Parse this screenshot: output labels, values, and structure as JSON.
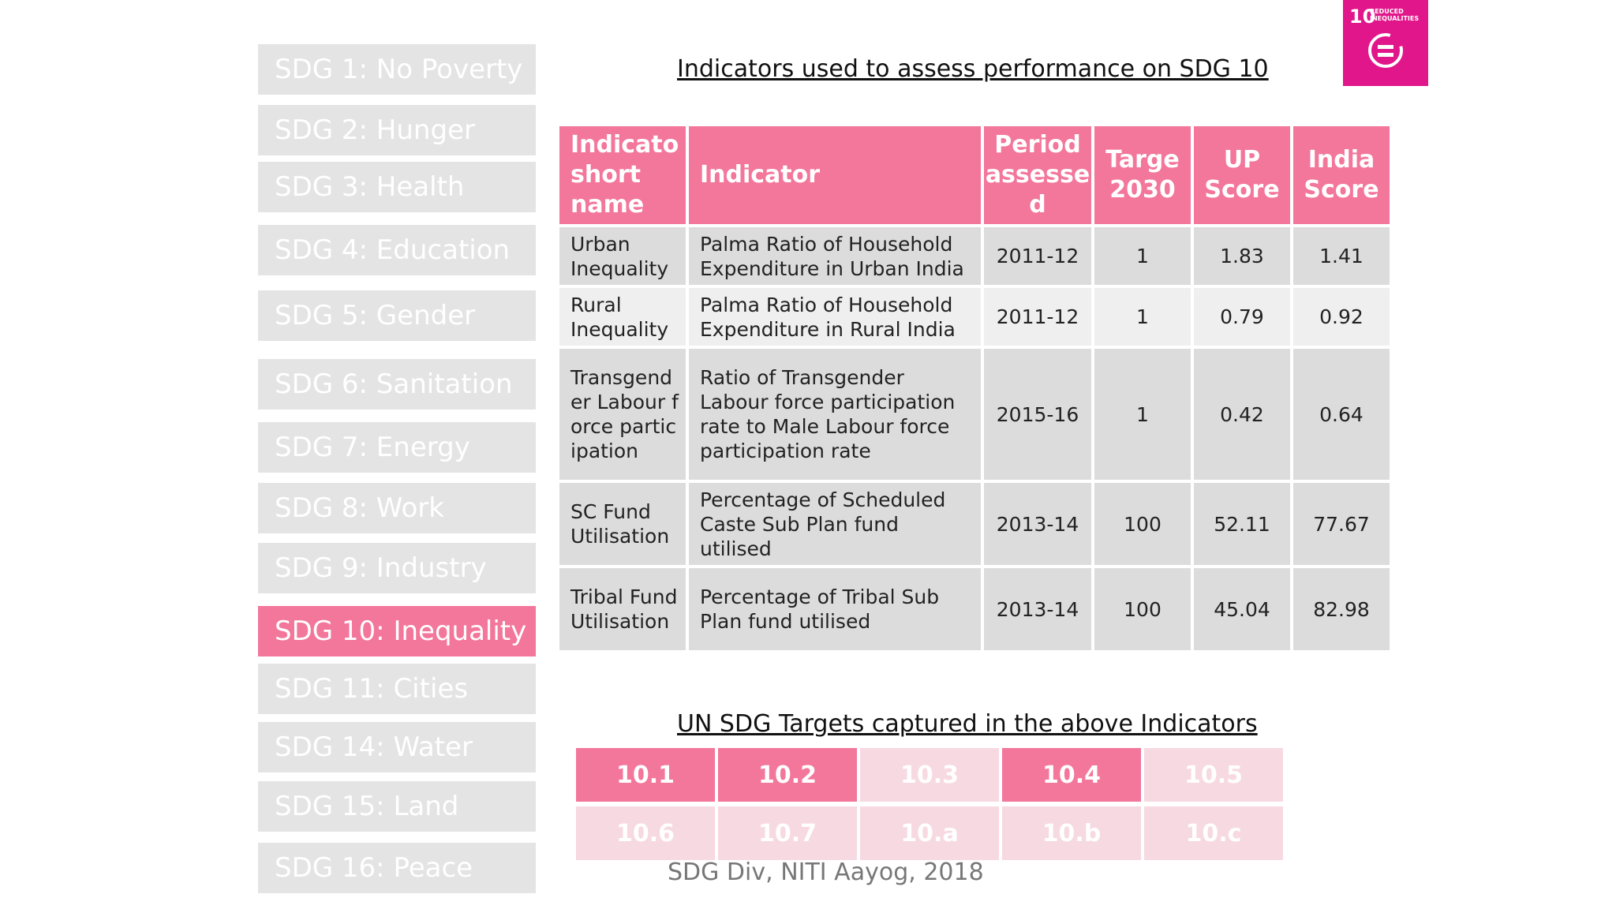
{
  "sidebar": {
    "items": [
      {
        "label": "SDG 1: No Poverty"
      },
      {
        "label": "SDG 2: Hunger"
      },
      {
        "label": "SDG 3: Health"
      },
      {
        "label": "SDG 4: Education"
      },
      {
        "label": "SDG 5: Gender"
      },
      {
        "label": "SDG 6: Sanitation"
      },
      {
        "label": "SDG 7: Energy"
      },
      {
        "label": "SDG 8: Work"
      },
      {
        "label": "SDG 9: Industry"
      },
      {
        "label": "SDG 10: Inequality",
        "active": true
      },
      {
        "label": "SDG 11: Cities"
      },
      {
        "label": "SDG 14: Water"
      },
      {
        "label": "SDG 15: Land"
      },
      {
        "label": "SDG 16: Peace"
      }
    ]
  },
  "logo": {
    "number": "10",
    "text": "REDUCED INEQUALITIES",
    "icon": "reduced-inequalities-icon",
    "color": "#e1168a"
  },
  "title": "Indicators used to assess performance on SDG 10",
  "table": {
    "headers": [
      "Indicato short name",
      "Indicator",
      "Period assesse d",
      "Targe 2030",
      "UP Score",
      "India Score"
    ],
    "rows": [
      {
        "short": "Urban Inequality",
        "indicator": "Palma Ratio of Household Expenditure in Urban India",
        "period": "2011-12",
        "target": "1",
        "up": "1.83",
        "india": "1.41"
      },
      {
        "short": "Rural Inequality",
        "indicator": "Palma Ratio of Household Expenditure in Rural India",
        "period": "2011-12",
        "target": "1",
        "up": "0.79",
        "india": "0.92"
      },
      {
        "short": "Transgender Labour force participation",
        "indicator": "Ratio of Transgender Labour force participation rate to Male Labour force participation rate",
        "period": "2015-16",
        "target": "1",
        "up": "0.42",
        "india": "0.64"
      },
      {
        "short": "SC Fund Utilisation",
        "indicator": "Percentage of Scheduled Caste Sub Plan fund utilised",
        "period": "2013-14",
        "target": "100",
        "up": "52.11",
        "india": "77.67"
      },
      {
        "short": "Tribal Fund Utilisation",
        "indicator": "Percentage of Tribal Sub Plan fund utilised",
        "period": "2013-14",
        "target": "100",
        "up": "45.04",
        "india": "82.98"
      }
    ]
  },
  "targets_title": "UN SDG Targets captured in the above Indicators",
  "targets": [
    {
      "label": "10.1",
      "captured": true
    },
    {
      "label": "10.2",
      "captured": true
    },
    {
      "label": "10.3",
      "captured": false
    },
    {
      "label": "10.4",
      "captured": true
    },
    {
      "label": "10.5",
      "captured": false
    },
    {
      "label": "10.6",
      "captured": false
    },
    {
      "label": "10.7",
      "captured": false
    },
    {
      "label": "10.a",
      "captured": false
    },
    {
      "label": "10.b",
      "captured": false
    },
    {
      "label": "10.c",
      "captured": false
    }
  ],
  "colors": {
    "accent": "#f3769b",
    "inactive": "#e4e4e4",
    "target_off": "#f7d9e2"
  },
  "footer": "SDG Div,  NITI Aayog, 2018"
}
